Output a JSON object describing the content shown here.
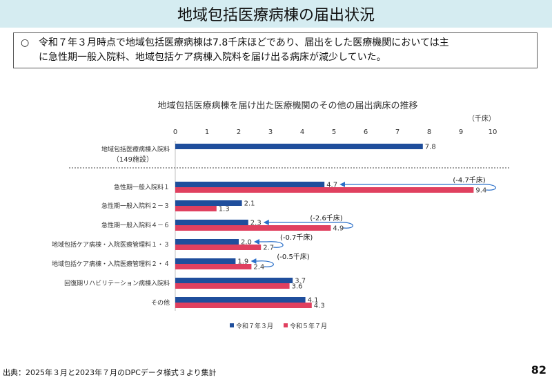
{
  "header": {
    "title": "地域包括医療病棟の届出状況"
  },
  "summary": {
    "bullet": "○",
    "line1": "令和７年３月時点で地域包括医療病棟は7.8千床ほどであり、届出をした医療機関においては主",
    "line2": "に急性期一般入院料、地域包括ケア病棟入院料を届け出る病床が減少していた。"
  },
  "chart_data": {
    "type": "bar",
    "orientation": "horizontal",
    "title": "地域包括医療病棟を届け出た医療機関のその他の届出病床の推移",
    "unit": "（千床）",
    "xlim": [
      0,
      10
    ],
    "xticks": [
      "0",
      "1",
      "2",
      "3",
      "4",
      "5",
      "6",
      "7",
      "8",
      "9",
      "10"
    ],
    "categories": [
      {
        "label": "地域包括医療病棟入院料",
        "sublabel": "（149施設）"
      },
      {
        "label": "急性期一般入院料１"
      },
      {
        "label": "急性期一般入院料２－３"
      },
      {
        "label": "急性期一般入院料４－６"
      },
      {
        "label": "地域包括ケア病棟・入院医療管理料１・３"
      },
      {
        "label": "地域包括ケア病棟・入院医療管理料２・４"
      },
      {
        "label": "回復期リハビリテーション病棟入院料"
      },
      {
        "label": "その他"
      }
    ],
    "series": [
      {
        "name": "令和７年３月",
        "color": "#1f4e9c",
        "values": [
          7.8,
          4.7,
          2.1,
          2.3,
          2.0,
          1.9,
          3.7,
          4.1
        ]
      },
      {
        "name": "令和５年７月",
        "color": "#e0405f",
        "values": [
          null,
          9.4,
          1.3,
          4.9,
          2.7,
          2.4,
          3.6,
          4.3
        ]
      }
    ],
    "annotations": [
      {
        "category_index": 1,
        "text": "(-4.7千床)"
      },
      {
        "category_index": 3,
        "text": "(-2.6千床)"
      },
      {
        "category_index": 4,
        "text": "(-0.7千床)"
      },
      {
        "category_index": 5,
        "text": "(-0.5千床)"
      }
    ],
    "legend_position": "bottom"
  },
  "footer": {
    "source": "出典：2025年３月と2023年７月のDPCデータ様式３より集計",
    "page_number": "82"
  }
}
